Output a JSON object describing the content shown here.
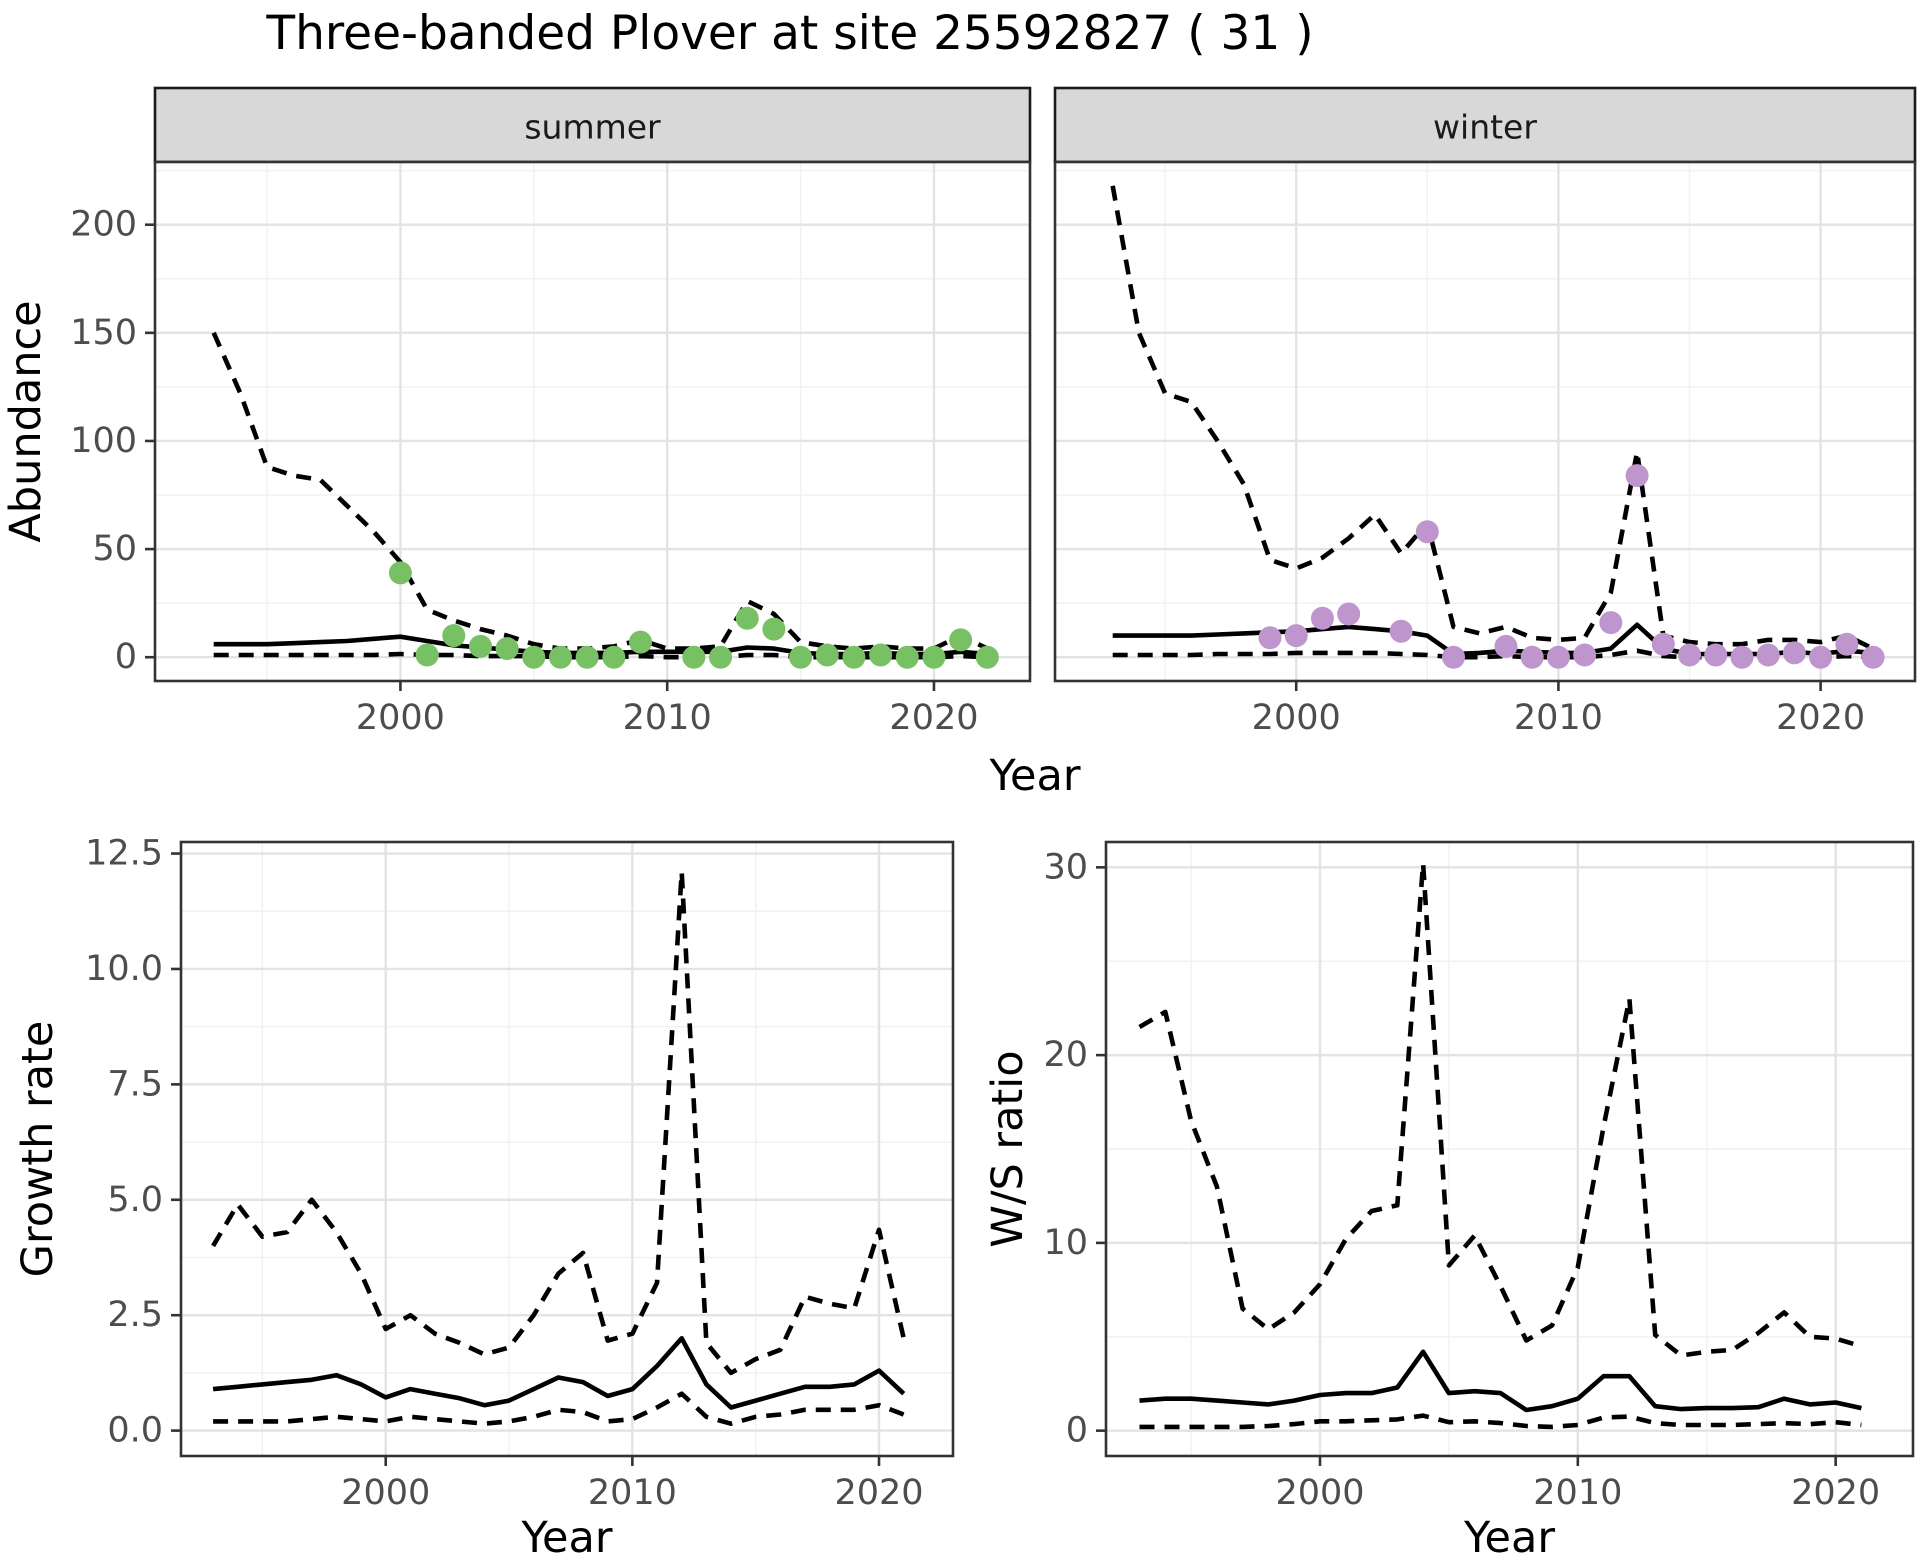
{
  "title": "Three-banded Plover at site 25592827 ( 31 )",
  "colors": {
    "summer_point": "#78C064",
    "winter_point": "#BE96CD",
    "line": "#000000",
    "grid_major": "#E3E3E3",
    "grid_minor": "#F1F1F1",
    "panel_border": "#333333",
    "strip_bg": "#D8D8D8",
    "strip_text": "#1A1A1A",
    "tick_label": "#4D4D4D",
    "axis_title": "#000000"
  },
  "chart_data": [
    {
      "id": "abundance",
      "type": "line",
      "ylabel": "Abundance",
      "xlabel": "Year",
      "legend": "none",
      "grid": "on",
      "xlim": [
        1990.8,
        2023.6
      ],
      "ylim": [
        -11,
        229
      ],
      "xticks": {
        "values": [
          2000,
          2010,
          2020
        ],
        "labels": [
          "2000",
          "2010",
          "2020"
        ]
      },
      "yticks": {
        "values": [
          0,
          50,
          100,
          150,
          200
        ],
        "labels": [
          "0",
          "50",
          "100",
          "150",
          "200"
        ]
      },
      "facets": [
        {
          "label": "summer",
          "point_color": "#78C064",
          "years": [
            1993,
            1994,
            1995,
            1996,
            1997,
            1998,
            1999,
            2000,
            2001,
            2002,
            2003,
            2004,
            2005,
            2006,
            2007,
            2008,
            2009,
            2010,
            2011,
            2012,
            2013,
            2014,
            2015,
            2016,
            2017,
            2018,
            2019,
            2020,
            2021,
            2022
          ],
          "series": [
            {
              "name": "upper-ci",
              "style": "dashed",
              "values": [
                150,
                122,
                88,
                84,
                82,
                70,
                58,
                44,
                22,
                17,
                13,
                10,
                6,
                4,
                4,
                5,
                8,
                4,
                4,
                5,
                26,
                20,
                7,
                5,
                4,
                5,
                4,
                4,
                10,
                4
              ]
            },
            {
              "name": "mean",
              "style": "solid",
              "values": [
                6,
                6,
                6,
                6.5,
                7,
                7.5,
                8.5,
                9.5,
                7.5,
                5.5,
                4.5,
                3.5,
                2.5,
                2,
                2,
                2,
                2.5,
                2.5,
                2.5,
                2.5,
                4.5,
                4,
                2,
                1.5,
                1.5,
                2,
                1.5,
                1.5,
                2.5,
                1.5
              ]
            },
            {
              "name": "lower-ci",
              "style": "dashed",
              "values": [
                1,
                1,
                1,
                1,
                1,
                1,
                1,
                1.5,
                1,
                1,
                0.5,
                0.5,
                0.5,
                0,
                0,
                0,
                0.5,
                0,
                0,
                0,
                1,
                1,
                0,
                0,
                0,
                0,
                0,
                0,
                0.5,
                0
              ]
            }
          ],
          "points": {
            "years": [
              2000,
              2001,
              2002,
              2003,
              2004,
              2005,
              2006,
              2007,
              2008,
              2009,
              2011,
              2012,
              2013,
              2014,
              2015,
              2016,
              2017,
              2018,
              2019,
              2020,
              2021,
              2022
            ],
            "values": [
              39,
              1,
              10,
              5,
              4,
              0,
              0,
              0,
              0,
              7,
              0,
              0,
              18,
              13,
              0,
              1,
              0,
              1,
              0,
              0,
              8,
              0
            ]
          }
        },
        {
          "label": "winter",
          "point_color": "#BE96CD",
          "years": [
            1993,
            1994,
            1995,
            1996,
            1997,
            1998,
            1999,
            2000,
            2001,
            2002,
            2003,
            2004,
            2005,
            2006,
            2007,
            2008,
            2009,
            2010,
            2011,
            2012,
            2013,
            2014,
            2015,
            2016,
            2017,
            2018,
            2019,
            2020,
            2021,
            2022
          ],
          "series": [
            {
              "name": "upper-ci",
              "style": "dashed",
              "values": [
                218,
                150,
                122,
                118,
                100,
                80,
                45,
                41,
                46,
                55,
                66,
                48,
                62,
                14,
                11,
                14,
                9,
                8,
                9,
                30,
                95,
                10,
                7,
                6,
                6,
                8,
                8,
                7,
                10,
                4
              ]
            },
            {
              "name": "mean",
              "style": "solid",
              "values": [
                10,
                10,
                10,
                10,
                10.5,
                11,
                11.5,
                12,
                13,
                14,
                13,
                12,
                10,
                1.5,
                2,
                3,
                2.5,
                2,
                2,
                4,
                15,
                4,
                1.5,
                1.5,
                1.5,
                1.5,
                2.5,
                1.5,
                3,
                2
              ]
            },
            {
              "name": "lower-ci",
              "style": "dashed",
              "values": [
                1,
                1,
                1,
                1,
                1.5,
                1.5,
                1.5,
                2,
                2,
                2,
                2,
                1.5,
                1,
                0,
                0,
                0.5,
                0,
                0,
                0,
                1,
                3,
                0.5,
                0,
                0,
                0,
                0,
                0.5,
                0,
                0.5,
                0
              ]
            }
          ],
          "points": {
            "years": [
              1999,
              2000,
              2001,
              2002,
              2004,
              2005,
              2006,
              2008,
              2009,
              2010,
              2011,
              2012,
              2013,
              2014,
              2015,
              2016,
              2017,
              2018,
              2019,
              2020,
              2021,
              2022
            ],
            "values": [
              9,
              10,
              18,
              20,
              12,
              58,
              0,
              5,
              0,
              0,
              1,
              16,
              84,
              6,
              1,
              1,
              0,
              1,
              2,
              0,
              6,
              0
            ]
          }
        }
      ]
    },
    {
      "id": "growth-rate",
      "type": "line",
      "ylabel": "Growth rate",
      "xlabel": "Year",
      "legend": "none",
      "grid": "on",
      "xlim": [
        1991.7,
        2023.0
      ],
      "ylim": [
        -0.55,
        12.75
      ],
      "xticks": {
        "values": [
          2000,
          2010,
          2020
        ],
        "labels": [
          "2000",
          "2010",
          "2020"
        ]
      },
      "yticks": {
        "values": [
          0,
          2.5,
          5,
          7.5,
          10,
          12.5
        ],
        "labels": [
          "0.0",
          "2.5",
          "5.0",
          "7.5",
          "10.0",
          "12.5"
        ]
      },
      "years": [
        1993,
        1994,
        1995,
        1996,
        1997,
        1998,
        1999,
        2000,
        2001,
        2002,
        2003,
        2004,
        2005,
        2006,
        2007,
        2008,
        2009,
        2010,
        2011,
        2012,
        2013,
        2014,
        2015,
        2016,
        2017,
        2018,
        2019,
        2020,
        2021
      ],
      "series": [
        {
          "name": "upper-ci",
          "style": "dashed",
          "values": [
            4.0,
            4.9,
            4.2,
            4.3,
            5.0,
            4.3,
            3.4,
            2.2,
            2.5,
            2.1,
            1.9,
            1.65,
            1.8,
            2.5,
            3.4,
            3.85,
            1.95,
            2.1,
            3.2,
            12.1,
            1.9,
            1.25,
            1.55,
            1.75,
            2.9,
            2.75,
            2.65,
            4.35,
            2.0
          ]
        },
        {
          "name": "mean",
          "style": "solid",
          "values": [
            0.9,
            0.95,
            1.0,
            1.05,
            1.1,
            1.2,
            1.0,
            0.72,
            0.9,
            0.8,
            0.7,
            0.55,
            0.65,
            0.9,
            1.15,
            1.05,
            0.75,
            0.9,
            1.4,
            2.0,
            1.0,
            0.5,
            0.65,
            0.8,
            0.95,
            0.95,
            1.0,
            1.3,
            0.8
          ]
        },
        {
          "name": "lower-ci",
          "style": "dashed",
          "values": [
            0.2,
            0.2,
            0.2,
            0.2,
            0.25,
            0.3,
            0.25,
            0.2,
            0.3,
            0.25,
            0.2,
            0.15,
            0.2,
            0.3,
            0.45,
            0.4,
            0.2,
            0.25,
            0.5,
            0.8,
            0.3,
            0.15,
            0.3,
            0.35,
            0.45,
            0.45,
            0.45,
            0.55,
            0.35
          ]
        }
      ]
    },
    {
      "id": "ws-ratio",
      "type": "line",
      "ylabel": "W/S ratio",
      "xlabel": "Year",
      "legend": "none",
      "grid": "on",
      "xlim": [
        1991.7,
        2023.0
      ],
      "ylim": [
        -1.35,
        31.35
      ],
      "xticks": {
        "values": [
          2000,
          2010,
          2020
        ],
        "labels": [
          "2000",
          "2010",
          "2020"
        ]
      },
      "yticks": {
        "values": [
          0,
          10,
          20,
          30
        ],
        "labels": [
          "0",
          "10",
          "20",
          "30"
        ]
      },
      "years": [
        1993,
        1994,
        1995,
        1996,
        1997,
        1998,
        1999,
        2000,
        2001,
        2002,
        2003,
        2004,
        2005,
        2006,
        2007,
        2008,
        2009,
        2010,
        2011,
        2012,
        2013,
        2014,
        2015,
        2016,
        2017,
        2018,
        2019,
        2020,
        2021
      ],
      "series": [
        {
          "name": "upper-ci",
          "style": "dashed",
          "values": [
            21.5,
            22.3,
            16.5,
            13.0,
            6.5,
            5.4,
            6.3,
            7.8,
            10.2,
            11.7,
            12.0,
            30.2,
            8.8,
            10.4,
            7.7,
            4.8,
            5.6,
            8.7,
            16.2,
            23.0,
            5.1,
            4.0,
            4.2,
            4.3,
            5.2,
            6.3,
            5.0,
            4.9,
            4.5
          ]
        },
        {
          "name": "mean",
          "style": "solid",
          "values": [
            1.6,
            1.7,
            1.7,
            1.6,
            1.5,
            1.4,
            1.6,
            1.9,
            2.0,
            2.0,
            2.3,
            4.2,
            2.0,
            2.1,
            2.0,
            1.1,
            1.3,
            1.7,
            2.9,
            2.9,
            1.3,
            1.15,
            1.2,
            1.2,
            1.25,
            1.7,
            1.4,
            1.5,
            1.2
          ]
        },
        {
          "name": "lower-ci",
          "style": "dashed",
          "values": [
            0.2,
            0.2,
            0.2,
            0.2,
            0.2,
            0.25,
            0.35,
            0.5,
            0.5,
            0.55,
            0.6,
            0.8,
            0.45,
            0.5,
            0.4,
            0.25,
            0.2,
            0.3,
            0.7,
            0.75,
            0.4,
            0.3,
            0.3,
            0.3,
            0.35,
            0.4,
            0.35,
            0.45,
            0.3
          ]
        }
      ]
    }
  ]
}
